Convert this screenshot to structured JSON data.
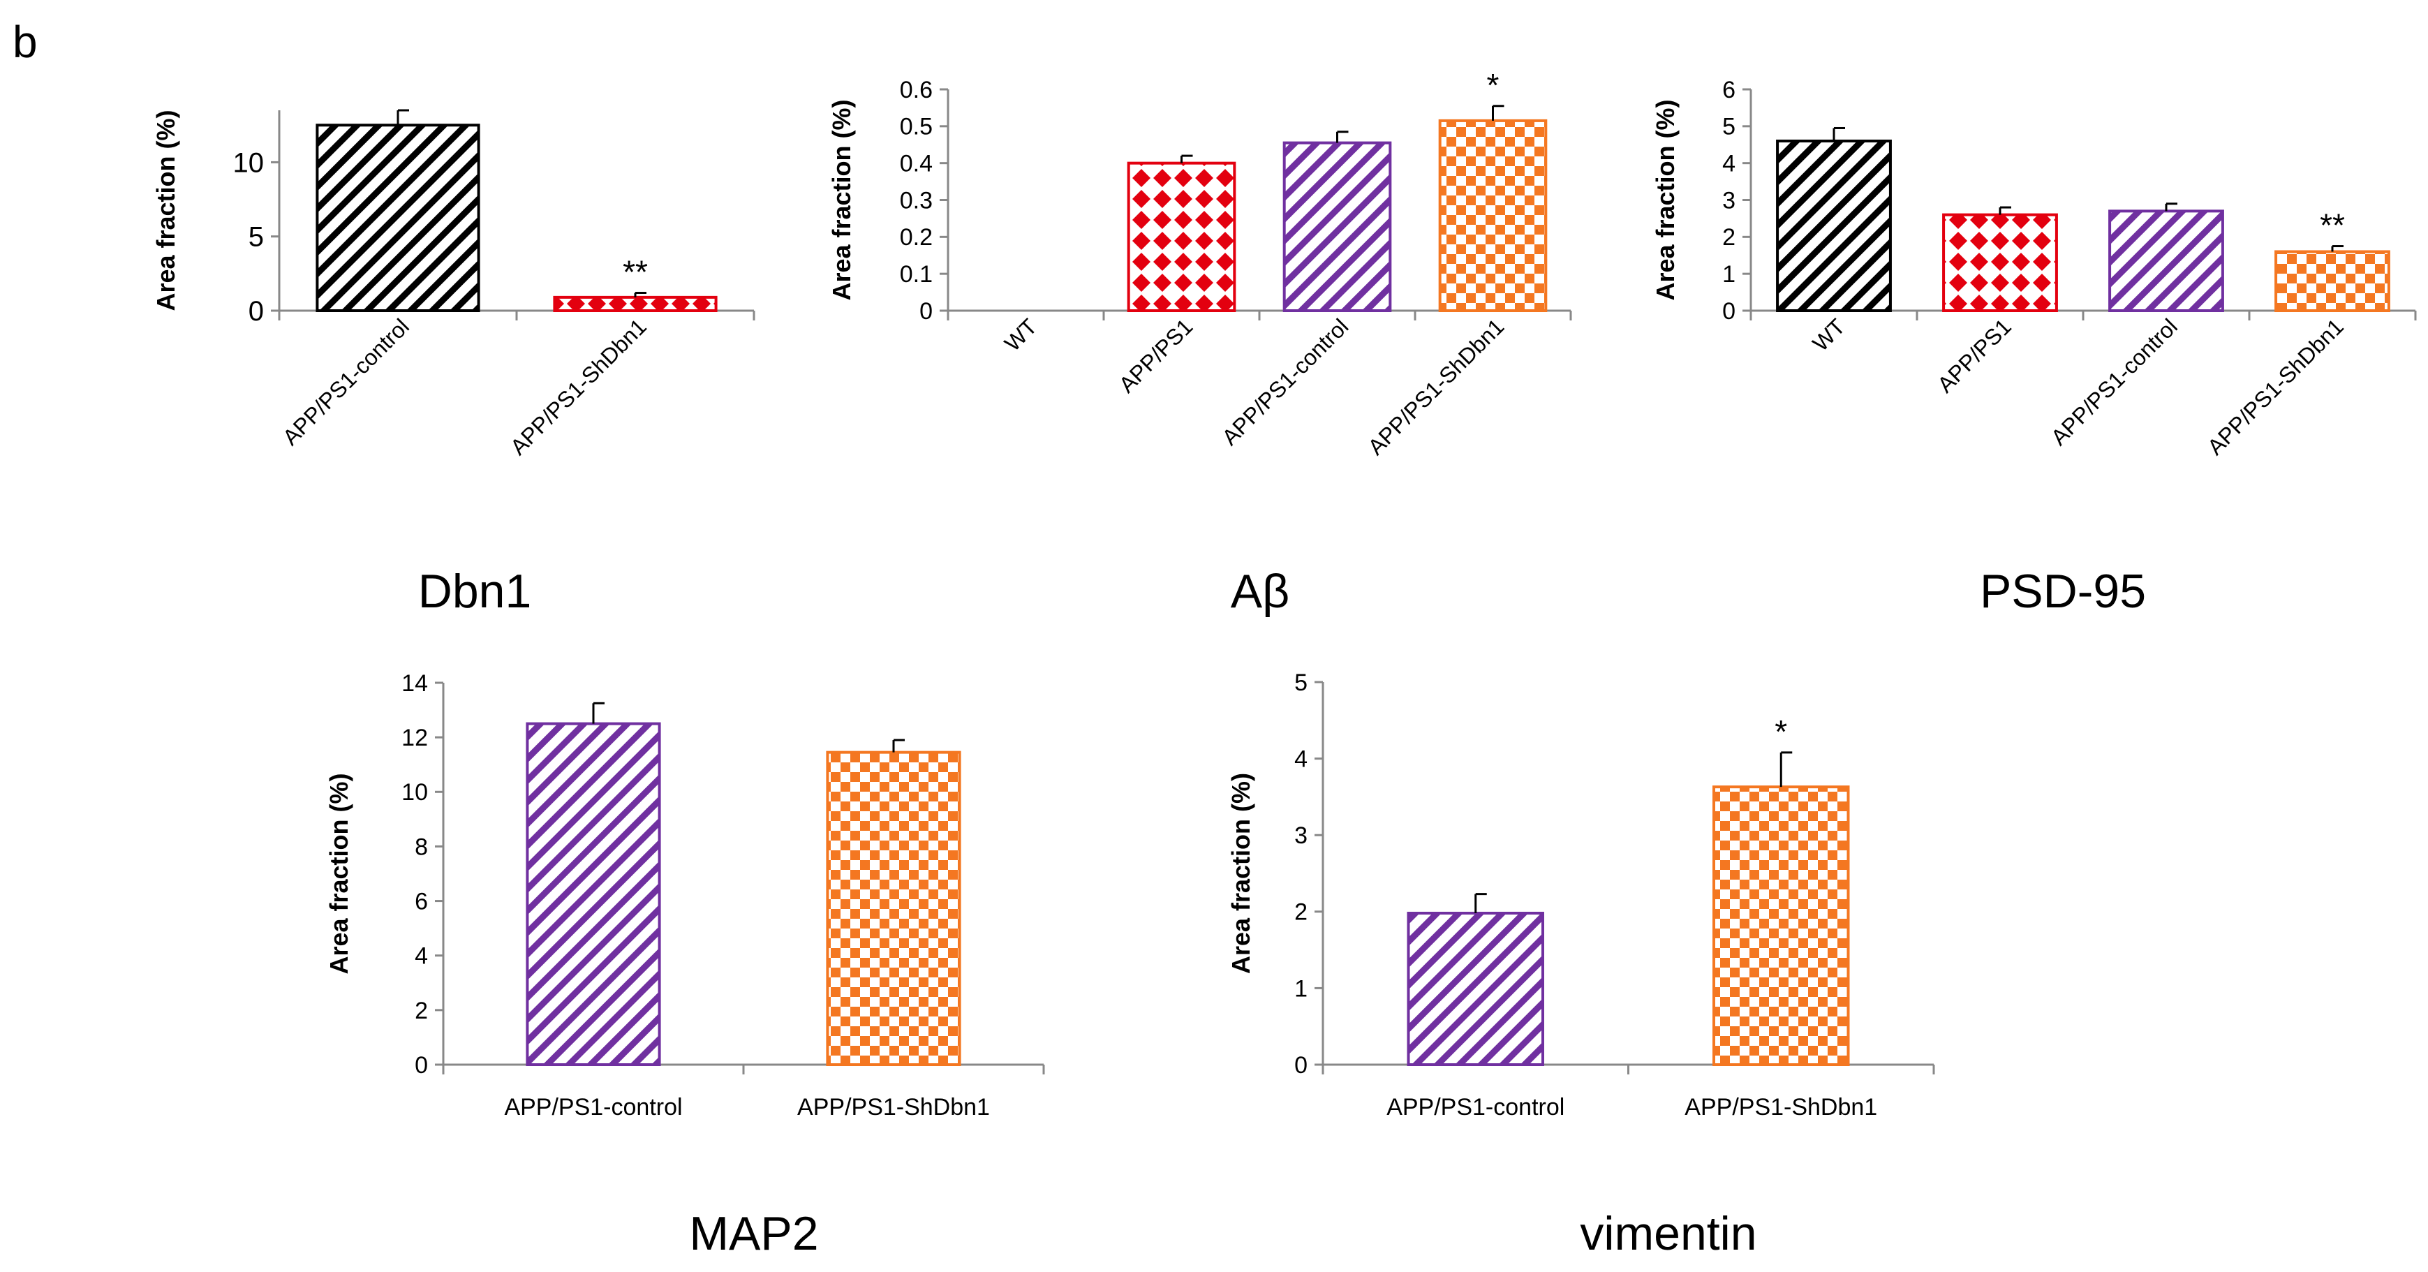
{
  "panel_label": "b",
  "colors": {
    "black": "#000000",
    "red": "#e3000f",
    "purple": "#7030a0",
    "orange": "#f47721"
  },
  "chart_data": [
    {
      "type": "bar",
      "title": "Dbn1",
      "ylabel": "Area fraction (%)",
      "xlabel": "",
      "categories": [
        "APP/PS1-control",
        "APP/PS1-ShDbn1"
      ],
      "values": [
        12.5,
        0.9
      ],
      "errors": [
        1.0,
        0.3
      ],
      "significance": [
        "",
        "**"
      ],
      "patterns": [
        "diagonal-black",
        "diamond-red"
      ],
      "ylim": [
        0,
        13.5
      ],
      "yticks": [
        0,
        5,
        10
      ],
      "tick_labels_rotated": true
    },
    {
      "type": "bar",
      "title": "Aβ",
      "ylabel": "Area fraction (%)",
      "xlabel": "",
      "categories": [
        "WT",
        "APP/PS1",
        "APP/PS1-control",
        "APP/PS1-ShDbn1"
      ],
      "values": [
        0,
        0.4,
        0.455,
        0.515
      ],
      "errors": [
        0,
        0.02,
        0.03,
        0.04
      ],
      "significance": [
        "",
        "",
        "",
        "*"
      ],
      "patterns": [
        "diagonal-black",
        "diamond-red",
        "diagonal-purple",
        "checker-orange"
      ],
      "ylim": [
        0,
        0.6
      ],
      "yticks": [
        0,
        0.1,
        0.2,
        0.3,
        0.4,
        0.5,
        0.6
      ],
      "tick_labels_rotated": true
    },
    {
      "type": "bar",
      "title": "PSD-95",
      "ylabel": "Area fraction (%)",
      "xlabel": "",
      "categories": [
        "WT",
        "APP/PS1",
        "APP/PS1-control",
        "APP/PS1-ShDbn1"
      ],
      "values": [
        4.6,
        2.6,
        2.7,
        1.6
      ],
      "errors": [
        0.35,
        0.2,
        0.2,
        0.15
      ],
      "significance": [
        "",
        "",
        "",
        "**"
      ],
      "patterns": [
        "diagonal-black",
        "diamond-red",
        "diagonal-purple",
        "checker-orange"
      ],
      "ylim": [
        0,
        6
      ],
      "yticks": [
        0,
        1,
        2,
        3,
        4,
        5,
        6
      ],
      "tick_labels_rotated": true
    },
    {
      "type": "bar",
      "title": "MAP2",
      "ylabel": "Area fraction (%)",
      "xlabel": "",
      "categories": [
        "APP/PS1-control",
        "APP/PS1-ShDbn1"
      ],
      "values": [
        12.5,
        11.45
      ],
      "errors": [
        0.75,
        0.45
      ],
      "significance": [
        "",
        ""
      ],
      "patterns": [
        "diagonal-purple",
        "checker-orange"
      ],
      "ylim": [
        0,
        14
      ],
      "yticks": [
        0,
        2,
        4,
        6,
        8,
        10,
        12,
        14
      ],
      "tick_labels_rotated": false
    },
    {
      "type": "bar",
      "title": "vimentin",
      "ylabel": "Area fraction (%)",
      "xlabel": "",
      "categories": [
        "APP/PS1-control",
        "APP/PS1-ShDbn1"
      ],
      "values": [
        1.98,
        3.63
      ],
      "errors": [
        0.25,
        0.45
      ],
      "significance": [
        "",
        "*"
      ],
      "patterns": [
        "diagonal-purple",
        "checker-orange"
      ],
      "ylim": [
        0,
        5
      ],
      "yticks": [
        0,
        1,
        2,
        3,
        4,
        5
      ],
      "tick_labels_rotated": false
    }
  ]
}
